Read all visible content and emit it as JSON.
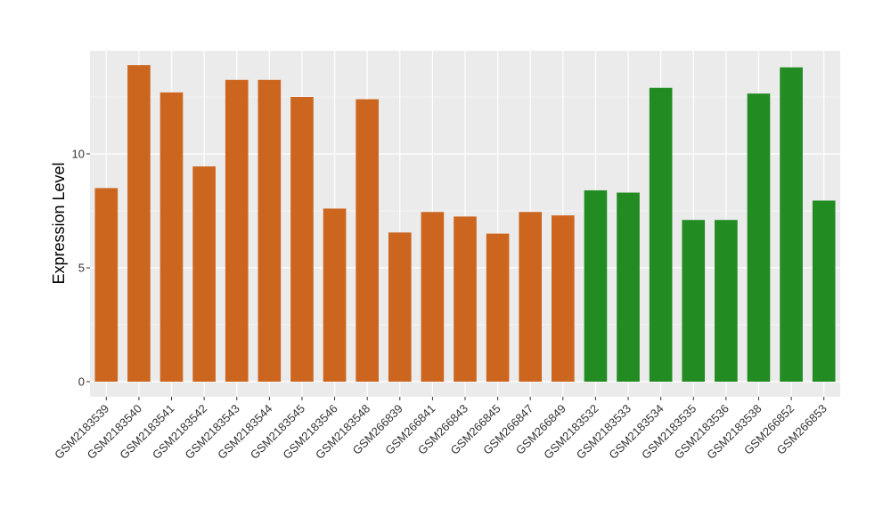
{
  "chart_data": {
    "type": "bar",
    "ylabel": "Expression Level",
    "xlabel": "",
    "ylim": [
      0,
      14.5
    ],
    "yticks": [
      0,
      5,
      10
    ],
    "grid": true,
    "categories": [
      "GSM2183539",
      "GSM2183540",
      "GSM2183541",
      "GSM2183542",
      "GSM2183543",
      "GSM2183544",
      "GSM2183545",
      "GSM2183546",
      "GSM2183548",
      "GSM266839",
      "GSM266841",
      "GSM266843",
      "GSM266845",
      "GSM266847",
      "GSM266849",
      "GSM2183532",
      "GSM2183533",
      "GSM2183534",
      "GSM2183535",
      "GSM2183536",
      "GSM2183538",
      "GSM266852",
      "GSM266853"
    ],
    "values": [
      8.5,
      13.9,
      12.7,
      9.45,
      13.25,
      13.25,
      12.5,
      7.6,
      12.4,
      6.55,
      7.45,
      7.25,
      6.5,
      7.45,
      7.3,
      8.4,
      8.3,
      12.9,
      7.1,
      7.1,
      12.65,
      13.8,
      7.95
    ],
    "bar_colors": [
      "#CC661F",
      "#CC661F",
      "#CC661F",
      "#CC661F",
      "#CC661F",
      "#CC661F",
      "#CC661F",
      "#CC661F",
      "#CC661F",
      "#CC661F",
      "#CC661F",
      "#CC661F",
      "#CC661F",
      "#CC661F",
      "#CC661F",
      "#228B22",
      "#228B22",
      "#228B22",
      "#228B22",
      "#228B22",
      "#228B22",
      "#228B22",
      "#228B22"
    ],
    "panel_background": "#EBEBEB",
    "grid_color": "#FFFFFF"
  }
}
